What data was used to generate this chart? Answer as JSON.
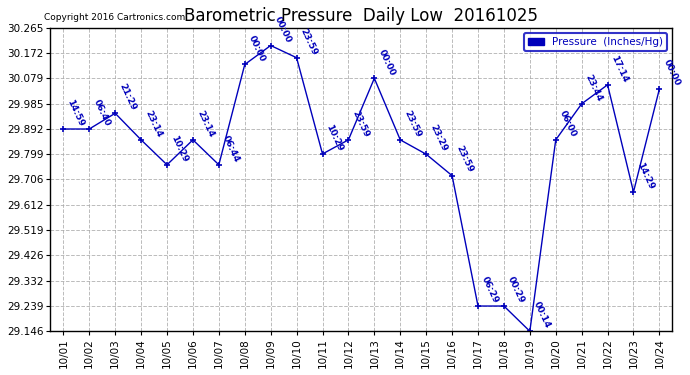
{
  "title": "Barometric Pressure  Daily Low  20161025",
  "copyright": "Copyright 2016 Cartronics.com",
  "legend_label": "Pressure  (Inches/Hg)",
  "x_labels": [
    "10/01",
    "10/02",
    "10/03",
    "10/04",
    "10/05",
    "10/06",
    "10/07",
    "10/08",
    "10/09",
    "10/10",
    "10/11",
    "10/12",
    "10/13",
    "10/14",
    "10/15",
    "10/16",
    "10/17",
    "10/18",
    "10/19",
    "10/20",
    "10/21",
    "10/22",
    "10/23",
    "10/24"
  ],
  "points_x": [
    0,
    1,
    2,
    3,
    4,
    5,
    6,
    7,
    8,
    9,
    10,
    11,
    12,
    13,
    14,
    15,
    16,
    17,
    18,
    19,
    20,
    21,
    22,
    23
  ],
  "points_y": [
    29.892,
    29.892,
    29.95,
    29.852,
    29.76,
    29.852,
    29.76,
    30.13,
    30.2,
    30.155,
    29.8,
    29.852,
    30.079,
    29.852,
    29.799,
    29.72,
    29.239,
    29.239,
    29.146,
    29.852,
    29.985,
    30.055,
    29.66,
    30.04
  ],
  "point_labels": [
    "14:59",
    "06:40",
    "21:29",
    "23:14",
    "10:29",
    "23:14",
    "06:44",
    "00:00",
    "00:00",
    "23:59",
    "10:29",
    "23:59",
    "00:00",
    "23:59",
    "23:29",
    "23:59",
    "06:29",
    "00:29",
    "00:14",
    "06:00",
    "23:44",
    "17:14",
    "14:29",
    "00:00"
  ],
  "ylim_min": 29.146,
  "ylim_max": 30.265,
  "yticks": [
    29.146,
    29.239,
    29.332,
    29.426,
    29.519,
    29.612,
    29.706,
    29.799,
    29.892,
    29.985,
    30.079,
    30.172,
    30.265
  ],
  "line_color": "#0000bb",
  "marker_color": "#0000bb",
  "bg_color": "#ffffff",
  "plot_bg_color": "#ffffff",
  "grid_color": "#aaaaaa",
  "title_color": "#000000",
  "label_color": "#0000bb",
  "legend_box_color": "#0000bb",
  "legend_text_color": "#0000bb",
  "title_fontsize": 12,
  "tick_fontsize": 7.5,
  "label_fontsize": 6.5
}
